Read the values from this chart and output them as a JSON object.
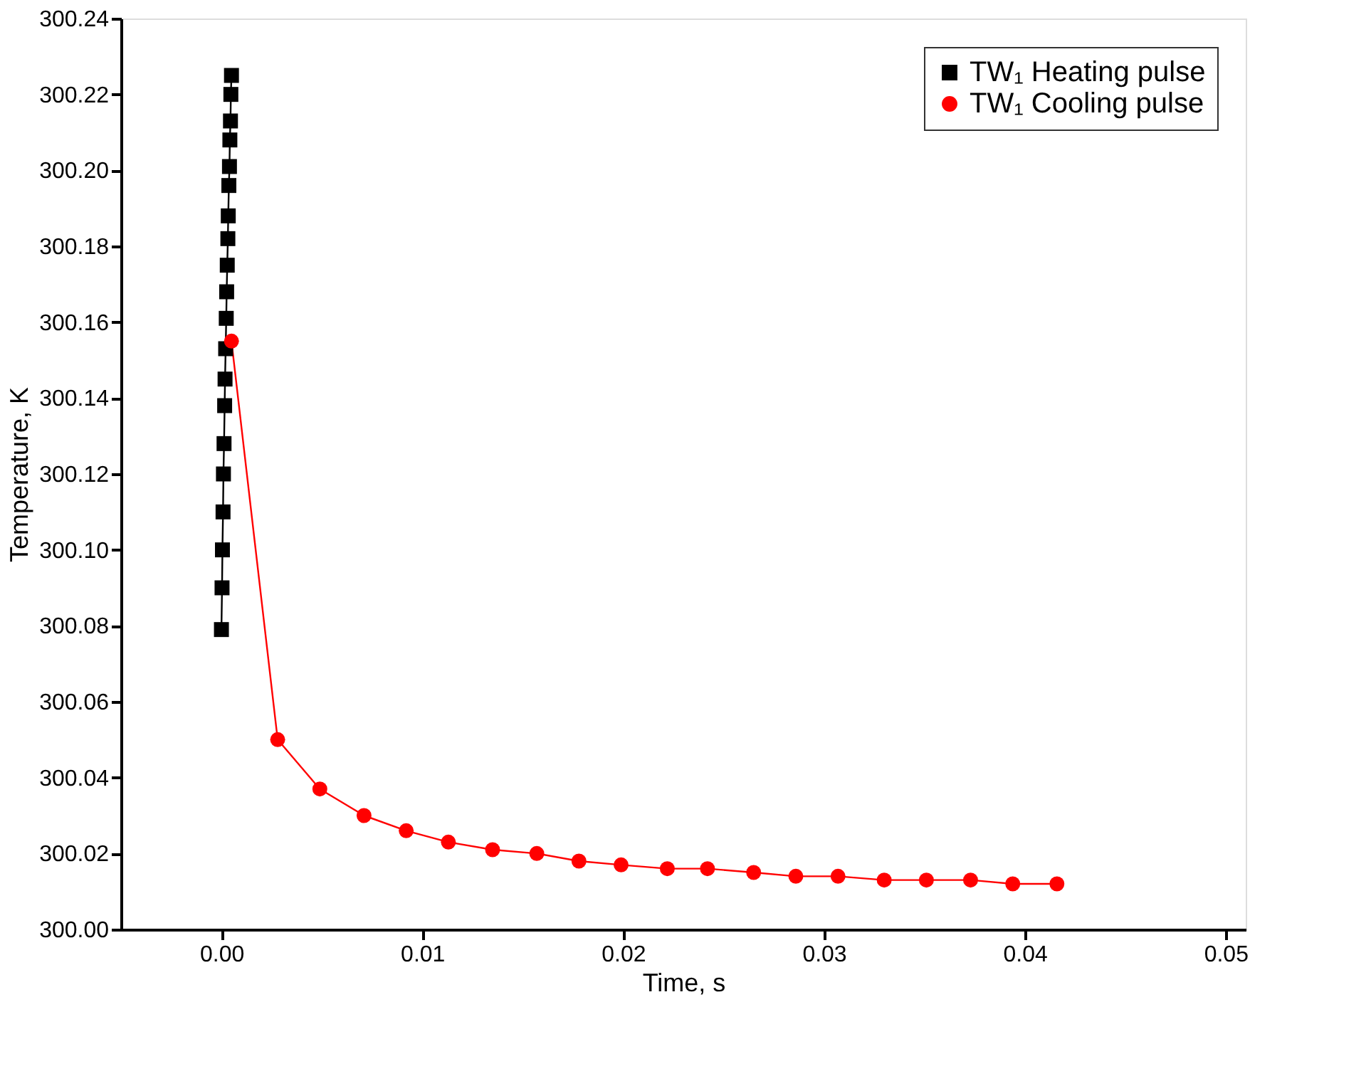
{
  "chart_data": {
    "type": "line",
    "xlabel": "Time, s",
    "ylabel": "Temperature, K",
    "xlim": [
      -0.005,
      0.051
    ],
    "ylim": [
      300.0,
      300.24
    ],
    "xticks": [
      {
        "value": 0,
        "label": "0.00"
      },
      {
        "value": 0.01,
        "label": "0.01"
      },
      {
        "value": 0.02,
        "label": "0.02"
      },
      {
        "value": 0.03,
        "label": "0.03"
      },
      {
        "value": 0.04,
        "label": "0.04"
      },
      {
        "value": 0.05,
        "label": "0.05"
      }
    ],
    "yticks": [
      {
        "value": 300.0,
        "label": "300.00"
      },
      {
        "value": 300.02,
        "label": "300.02"
      },
      {
        "value": 300.04,
        "label": "300.04"
      },
      {
        "value": 300.06,
        "label": "300.06"
      },
      {
        "value": 300.08,
        "label": "300.08"
      },
      {
        "value": 300.1,
        "label": "300.10"
      },
      {
        "value": 300.12,
        "label": "300.12"
      },
      {
        "value": 300.14,
        "label": "300.14"
      },
      {
        "value": 300.16,
        "label": "300.16"
      },
      {
        "value": 300.18,
        "label": "300.18"
      },
      {
        "value": 300.2,
        "label": "300.20"
      },
      {
        "value": 300.22,
        "label": "300.22"
      },
      {
        "value": 300.24,
        "label": "300.24"
      }
    ],
    "grid": false,
    "legend": "top right",
    "line_style": "solid",
    "series": [
      {
        "name": "TW₁ Heating pulse",
        "color": "#000000",
        "marker": "square",
        "x": [
          0.0,
          3e-05,
          5e-05,
          8e-05,
          0.0001,
          0.00013,
          0.00016,
          0.00018,
          0.00021,
          0.00024,
          0.00026,
          0.00029,
          0.00032,
          0.00034,
          0.00037,
          0.0004,
          0.00042,
          0.00045,
          0.00047,
          0.0005
        ],
        "values": [
          300.079,
          300.09,
          300.1,
          300.11,
          300.12,
          300.128,
          300.138,
          300.145,
          300.153,
          300.161,
          300.168,
          300.175,
          300.182,
          300.188,
          300.196,
          300.201,
          300.208,
          300.213,
          300.22,
          300.225
        ]
      },
      {
        "name": "TW₁ Cooling pulse",
        "color": "#ff0000",
        "marker": "circle",
        "x": [
          0.0005,
          0.0028,
          0.0049,
          0.0071,
          0.0092,
          0.0113,
          0.0135,
          0.0157,
          0.0178,
          0.0199,
          0.0222,
          0.0242,
          0.0265,
          0.0286,
          0.0307,
          0.033,
          0.0351,
          0.0373,
          0.0394,
          0.0416
        ],
        "values": [
          300.155,
          300.05,
          300.037,
          300.03,
          300.026,
          300.023,
          300.021,
          300.02,
          300.018,
          300.017,
          300.016,
          300.016,
          300.015,
          300.014,
          300.014,
          300.013,
          300.013,
          300.013,
          300.012,
          300.012
        ]
      }
    ]
  }
}
